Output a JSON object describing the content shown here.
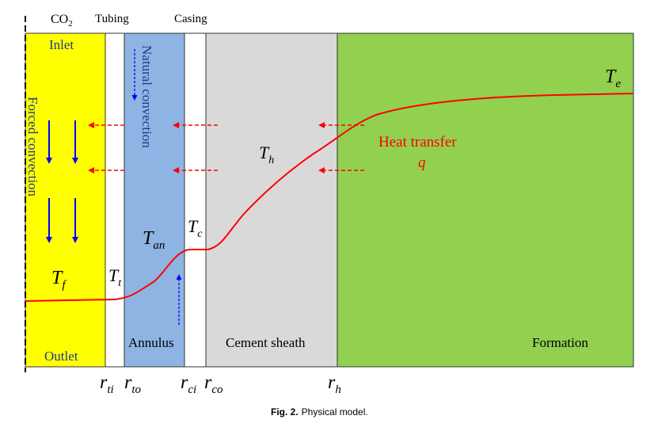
{
  "top_labels": {
    "co2": "CO",
    "co2_sub": "2",
    "tubing": "Tubing",
    "casing": "Casing"
  },
  "regions": {
    "inlet": "Inlet",
    "outlet": "Outlet",
    "forced_convection": "Forced convection",
    "natural_convection": "Natural convection",
    "annulus": "Annulus",
    "cement_sheath": "Cement sheath",
    "formation": "Formation",
    "heat_transfer": "Heat transfer",
    "q": "q"
  },
  "temperatures": {
    "Tf": {
      "base": "T",
      "sub": "f"
    },
    "Tt": {
      "base": "T",
      "sub": "t"
    },
    "Tan": {
      "base": "T",
      "sub": "an"
    },
    "Tc": {
      "base": "T",
      "sub": "c"
    },
    "Th": {
      "base": "T",
      "sub": "h"
    },
    "Te": {
      "base": "T",
      "sub": "e"
    }
  },
  "radii": {
    "rti": {
      "base": "r",
      "sub": "ti"
    },
    "rto": {
      "base": "r",
      "sub": "to"
    },
    "rci": {
      "base": "r",
      "sub": "ci"
    },
    "rco": {
      "base": "r",
      "sub": "co"
    },
    "rh": {
      "base": "r",
      "sub": "h"
    }
  },
  "caption": {
    "fig": "Fig. 2.",
    "text": "Physical model."
  },
  "colors": {
    "fluid": "#ffff00",
    "annulus": "#8eb4e3",
    "cement": "#d9d9d9",
    "formation": "#92d050",
    "curve": "#ff0000",
    "arrow_blue": "#0000ff",
    "arrow_red": "#ff0000",
    "label_blue": "#1f3a93"
  }
}
